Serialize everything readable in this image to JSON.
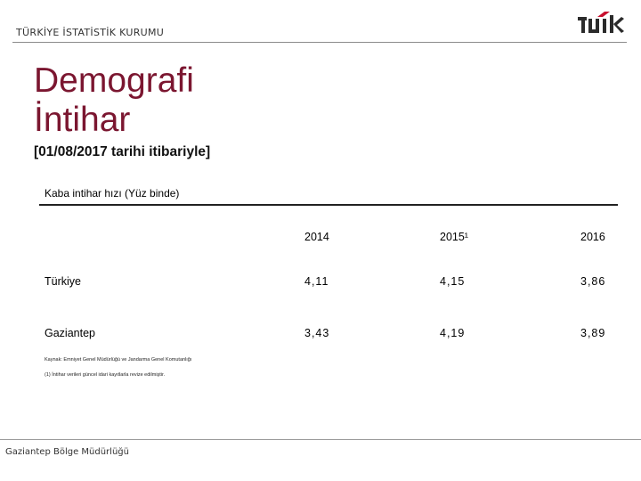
{
  "header": {
    "org_name": "TÜRKİYE İSTATİSTİK KURUMU",
    "logo_icon": "tuik-logo-icon"
  },
  "title": {
    "line1": "Demografi",
    "line2": "İntihar"
  },
  "subtitle": "[01/08/2017 tarihi itibariyle]",
  "table": {
    "caption": "Kaba intihar hızı (Yüz binde)",
    "columns": [
      "2014",
      "2015¹",
      "2016"
    ],
    "rows": [
      {
        "label": "Türkiye",
        "values": [
          "4,11",
          "4,15",
          "3,86"
        ]
      },
      {
        "label": "Gaziantep",
        "values": [
          "3,43",
          "4,19",
          "3,89"
        ]
      }
    ]
  },
  "source": "Kaynak: Emniyet Genel Müdürlüğü ve Jandarma Genel Komutanlığı",
  "note": "(1) İntihar verileri güncel idari kayıtlarla revize edilmiştir.",
  "footer": "Gaziantep Bölge Müdürlüğü",
  "colors": {
    "title": "#7b1630",
    "logo_red": "#c8102e",
    "logo_dark": "#2b2b2b"
  }
}
